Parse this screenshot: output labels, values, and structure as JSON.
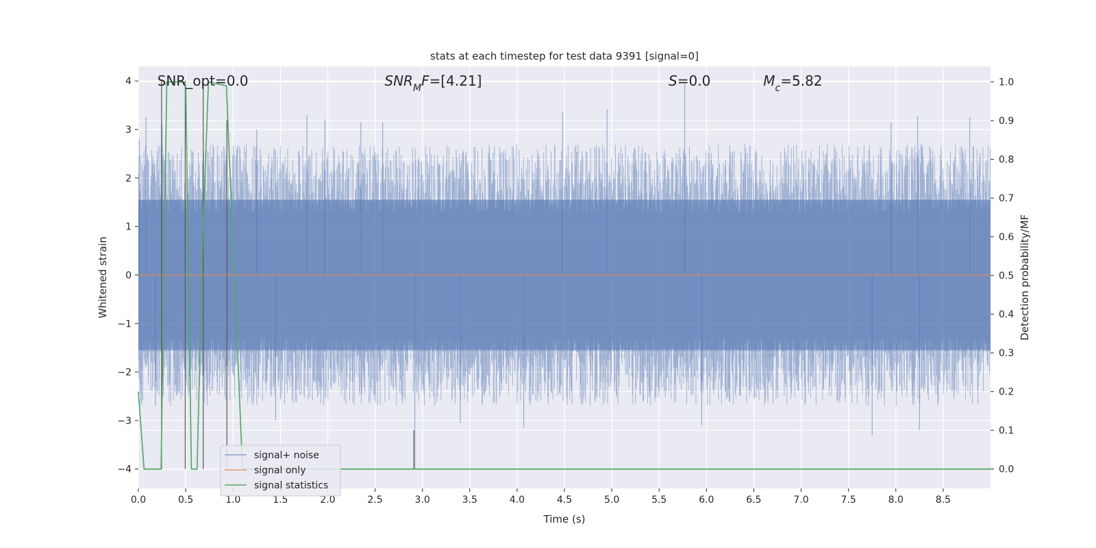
{
  "chart_data": {
    "type": "line",
    "title": "stats at each timestep for test data 9391 [signal=0]",
    "xlabel": "Time (s)",
    "ylabel": "Whitened strain",
    "y2label": "Detection probability/MF",
    "xlim": [
      0.0,
      9.0
    ],
    "ylim": [
      -4.4,
      4.3
    ],
    "y2lim": [
      -0.05,
      1.04
    ],
    "xticks": [
      0.0,
      0.5,
      1.0,
      1.5,
      2.0,
      2.5,
      3.0,
      3.5,
      4.0,
      4.5,
      5.0,
      5.5,
      6.0,
      6.5,
      7.0,
      7.5,
      8.0,
      8.5
    ],
    "xtick_labels": [
      "0.0",
      "0.5",
      "1.0",
      "1.5",
      "2.0",
      "2.5",
      "3.0",
      "3.5",
      "4.0",
      "4.5",
      "5.0",
      "5.5",
      "6.0",
      "6.5",
      "7.0",
      "7.5",
      "8.0",
      "8.5"
    ],
    "yticks": [
      4,
      3,
      2,
      1,
      0,
      -1,
      -2,
      -3,
      -4
    ],
    "ytick_labels": [
      "4",
      "3",
      "2",
      "1",
      "0",
      "−1",
      "−2",
      "−3",
      "−4"
    ],
    "y2ticks": [
      1.0,
      0.9,
      0.8,
      0.7,
      0.6,
      0.5,
      0.4,
      0.3,
      0.2,
      0.1,
      0.0
    ],
    "y2tick_labels": [
      "1.0",
      "0.9",
      "0.8",
      "0.7",
      "0.6",
      "0.5",
      "0.4",
      "0.3",
      "0.2",
      "0.1",
      "0.0"
    ],
    "grid": true,
    "legend_position": "lower-left",
    "annotations": [
      {
        "id": "snr-opt",
        "text": "SNR_opt=0.0",
        "x": 0.2,
        "y": 4.0
      },
      {
        "id": "snr-mf",
        "text": "SNRₘF=[4.21]",
        "parts": [
          {
            "t": "SNR",
            "i": true
          },
          {
            "t": "M",
            "i": true,
            "sub": true
          },
          {
            "t": "F",
            "i": true
          },
          {
            "t": "=[4.21]",
            "i": false
          }
        ],
        "x": 2.6,
        "y": 4.0
      },
      {
        "id": "s-stat",
        "text": "S=0.0",
        "parts": [
          {
            "t": "S",
            "i": true
          },
          {
            "t": "=0.0",
            "i": false
          }
        ],
        "x": 5.6,
        "y": 4.0
      },
      {
        "id": "mc",
        "text": "Mᴄ=5.82",
        "parts": [
          {
            "t": "M",
            "i": true
          },
          {
            "t": "c",
            "i": true,
            "sub": true
          },
          {
            "t": "=5.82",
            "i": false
          }
        ],
        "x": 6.6,
        "y": 4.0
      }
    ],
    "series": [
      {
        "name": "signal+ noise",
        "color": "#4c72b0",
        "style": "noise-band",
        "band_1sigma": 1.0,
        "typical_max": 2.7,
        "typical_min": -2.7,
        "peaks": [
          {
            "x": 0.01,
            "y": 2.8
          },
          {
            "x": 0.08,
            "y": 3.25
          },
          {
            "x": 0.25,
            "y": 3.1
          },
          {
            "x": 1.25,
            "y": 3.0
          },
          {
            "x": 1.78,
            "y": 3.3
          },
          {
            "x": 1.97,
            "y": 3.2
          },
          {
            "x": 2.35,
            "y": 3.15
          },
          {
            "x": 2.58,
            "y": 3.15
          },
          {
            "x": 4.48,
            "y": 3.35
          },
          {
            "x": 4.95,
            "y": 3.42
          },
          {
            "x": 5.77,
            "y": 3.93
          },
          {
            "x": 8.23,
            "y": 3.28
          },
          {
            "x": 7.95,
            "y": 3.15
          },
          {
            "x": 8.78,
            "y": 3.25
          }
        ],
        "troughs": [
          {
            "x": 2.92,
            "y": -4.0
          },
          {
            "x": 4.07,
            "y": -3.15
          },
          {
            "x": 7.75,
            "y": -3.3
          },
          {
            "x": 8.25,
            "y": -3.2
          },
          {
            "x": 5.95,
            "y": -3.1
          },
          {
            "x": 0.18,
            "y": -2.7
          },
          {
            "x": 3.4,
            "y": -3.05
          },
          {
            "x": 1.45,
            "y": -3.0
          }
        ]
      },
      {
        "name": "signal only",
        "color": "#dd8452",
        "x": [
          0.0,
          9.0
        ],
        "y": [
          0.0,
          0.0
        ]
      },
      {
        "name": "signal statistics",
        "color": "#55a868",
        "axis": "right",
        "x": [
          0.0,
          0.06,
          0.24,
          0.3,
          0.48,
          0.5,
          0.56,
          0.62,
          0.68,
          0.74,
          0.93,
          0.95,
          1.1,
          1.5,
          2.7,
          2.8,
          4.5,
          9.0
        ],
        "y": [
          0.2,
          0.0,
          0.0,
          1.0,
          1.0,
          0.99,
          0.0,
          0.0,
          0.6,
          1.0,
          0.99,
          0.87,
          0.0,
          0.0,
          0.0,
          0.0,
          0.0,
          0.0
        ]
      }
    ],
    "vlines": [
      {
        "x": 0.245,
        "ymin": -4.0,
        "ymax": 4.0
      },
      {
        "x": 0.495,
        "ymin": -4.0,
        "ymax": 4.0
      },
      {
        "x": 0.685,
        "ymin": -4.0,
        "ymax": 4.0
      },
      {
        "x": 0.935,
        "ymin": -4.0,
        "ymax": 3.2
      },
      {
        "x": 2.91,
        "ymin": -4.0,
        "ymax": -3.2
      }
    ]
  }
}
